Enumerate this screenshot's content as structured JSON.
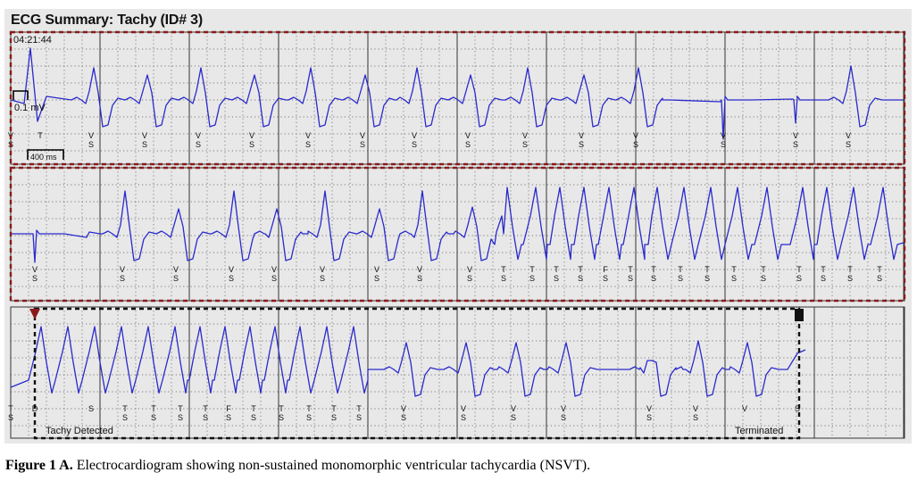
{
  "title": "ECG Summary: Tachy (ID# 3)",
  "timestamp": "04:21:44",
  "amplitude_label": "0.1 mV",
  "time_scale_label": "400 ms",
  "episode_labels": {
    "start": "Tachy Detected",
    "end": "Terminated"
  },
  "caption": {
    "prefix": "Figure 1 A.",
    "text": " Electrocardiogram showing non-sustained monomorphic ventricular tachycardia (NSVT)."
  },
  "colors": {
    "trace": "#2a2acc",
    "grid": "#555555",
    "red_box": "#8b1a1a",
    "black_box": "#111111",
    "panel": "#e8e8e8"
  },
  "chart_data": {
    "type": "line",
    "title": "ECG Summary: Tachy (ID# 3)",
    "strips": [
      {
        "markers": [
          {
            "t": 0,
            "ch": [
              "V",
              "S"
            ]
          },
          {
            "t": 0.33,
            "ch": [
              "T"
            ]
          },
          {
            "t": 0.9,
            "ch": [
              "V",
              "S"
            ]
          },
          {
            "t": 1.5,
            "ch": [
              "V",
              "S"
            ]
          },
          {
            "t": 2.1,
            "ch": [
              "V",
              "S"
            ]
          },
          {
            "t": 2.7,
            "ch": [
              "V",
              "S"
            ]
          },
          {
            "t": 3.33,
            "ch": [
              "V",
              "S"
            ]
          },
          {
            "t": 3.94,
            "ch": [
              "V",
              "S"
            ]
          },
          {
            "t": 4.52,
            "ch": [
              "V",
              "S"
            ]
          },
          {
            "t": 5.12,
            "ch": [
              "V",
              "S"
            ]
          },
          {
            "t": 5.76,
            "ch": [
              "V",
              "S"
            ]
          },
          {
            "t": 6.39,
            "ch": [
              "V",
              "S"
            ]
          },
          {
            "t": 7.0,
            "ch": [
              "V",
              "S"
            ]
          },
          {
            "t": 7.98,
            "ch": [
              "V",
              "S"
            ]
          },
          {
            "t": 8.79,
            "ch": [
              "V",
              "S"
            ]
          },
          {
            "t": 9.38,
            "ch": [
              "V",
              "S"
            ]
          }
        ]
      },
      {
        "markers": [
          {
            "t": 0.27,
            "ch": [
              "V",
              "S"
            ]
          },
          {
            "t": 1.25,
            "ch": [
              "V",
              "S"
            ]
          },
          {
            "t": 1.85,
            "ch": [
              "V",
              "S"
            ]
          },
          {
            "t": 2.47,
            "ch": [
              "V",
              "S"
            ]
          },
          {
            "t": 2.95,
            "ch": [
              "V",
              "S"
            ]
          },
          {
            "t": 3.49,
            "ch": [
              "V",
              "S"
            ]
          },
          {
            "t": 4.1,
            "ch": [
              "V",
              "S"
            ]
          },
          {
            "t": 4.58,
            "ch": [
              "V",
              "S"
            ]
          },
          {
            "t": 5.14,
            "ch": [
              "V",
              "S"
            ]
          },
          {
            "t": 5.52,
            "ch": [
              "T",
              "S"
            ]
          },
          {
            "t": 5.84,
            "ch": [
              "T",
              "S"
            ]
          },
          {
            "t": 6.11,
            "ch": [
              "T",
              "S"
            ]
          },
          {
            "t": 6.38,
            "ch": [
              "T",
              "S"
            ]
          },
          {
            "t": 6.66,
            "ch": [
              "F",
              "S"
            ]
          },
          {
            "t": 6.94,
            "ch": [
              "T",
              "S"
            ]
          },
          {
            "t": 7.2,
            "ch": [
              "T",
              "S"
            ]
          },
          {
            "t": 7.5,
            "ch": [
              "T",
              "S"
            ]
          },
          {
            "t": 7.8,
            "ch": [
              "T",
              "S"
            ]
          },
          {
            "t": 8.1,
            "ch": [
              "T",
              "S"
            ]
          },
          {
            "t": 8.43,
            "ch": [
              "T",
              "S"
            ]
          },
          {
            "t": 8.83,
            "ch": [
              "T",
              "S"
            ]
          },
          {
            "t": 9.1,
            "ch": [
              "T",
              "S"
            ]
          },
          {
            "t": 9.4,
            "ch": [
              "T",
              "S"
            ]
          },
          {
            "t": 9.73,
            "ch": [
              "T",
              "S"
            ]
          }
        ]
      },
      {
        "markers": [
          {
            "t": 0,
            "ch": [
              "T",
              "S"
            ]
          },
          {
            "t": 0.27,
            "ch": [
              "D"
            ]
          },
          {
            "t": 0.9,
            "ch": [
              "S"
            ]
          },
          {
            "t": 1.28,
            "ch": [
              "T",
              "S"
            ]
          },
          {
            "t": 1.6,
            "ch": [
              "T",
              "S"
            ]
          },
          {
            "t": 1.9,
            "ch": [
              "T",
              "S"
            ]
          },
          {
            "t": 2.18,
            "ch": [
              "T",
              "S"
            ]
          },
          {
            "t": 2.44,
            "ch": [
              "F",
              "S"
            ]
          },
          {
            "t": 2.72,
            "ch": [
              "T",
              "S"
            ]
          },
          {
            "t": 3.03,
            "ch": [
              "T",
              "S"
            ]
          },
          {
            "t": 3.34,
            "ch": [
              "T",
              "S"
            ]
          },
          {
            "t": 3.62,
            "ch": [
              "T",
              "S"
            ]
          },
          {
            "t": 3.9,
            "ch": [
              "T",
              "S"
            ]
          },
          {
            "t": 4.4,
            "ch": [
              "V",
              "S"
            ]
          },
          {
            "t": 5.07,
            "ch": [
              "V",
              "S"
            ]
          },
          {
            "t": 5.63,
            "ch": [
              "V",
              "S"
            ]
          },
          {
            "t": 6.19,
            "ch": [
              "V",
              "S"
            ]
          },
          {
            "t": 7.15,
            "ch": [
              "V",
              "S"
            ]
          },
          {
            "t": 7.67,
            "ch": [
              "V",
              "S"
            ]
          },
          {
            "t": 8.22,
            "ch": [
              "V"
            ]
          },
          {
            "t": 8.81,
            "ch": [
              "S"
            ]
          }
        ]
      }
    ]
  }
}
